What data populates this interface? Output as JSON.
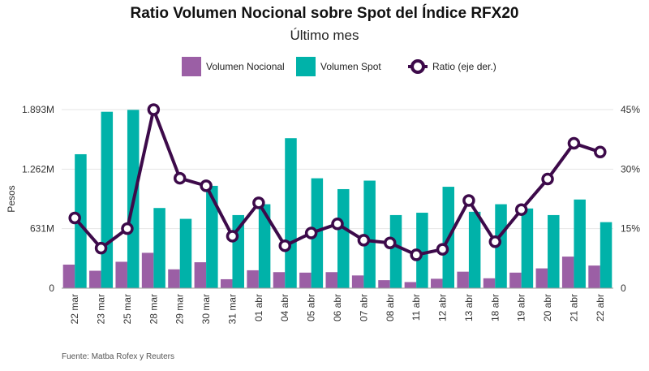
{
  "title": "Ratio Volumen Nocional sobre Spot del Índice RFX20",
  "subtitle": "Último mes",
  "source": "Fuente: Matba Rofex y Reuters",
  "legend": {
    "nocional": "Volumen Nocional",
    "spot": "Volumen Spot",
    "ratio": "Ratio (eje der.)"
  },
  "colors": {
    "nocional": "#9b5fa5",
    "spot": "#00b2a9",
    "ratio": "#3d0a4a",
    "grid": "#e6e6e6",
    "axis": "#9a9a9a"
  },
  "chart_data": {
    "type": "bar",
    "categories": [
      "22 mar",
      "23 mar",
      "25 mar",
      "28 mar",
      "29 mar",
      "30 mar",
      "31 mar",
      "01 abr",
      "04 abr",
      "05 abr",
      "06 abr",
      "07 abr",
      "08 abr",
      "11 abr",
      "12 abr",
      "13 abr",
      "18 abr",
      "19 abr",
      "20 abr",
      "21 abr",
      "22 abr"
    ],
    "series": [
      {
        "name": "Volumen Nocional",
        "axis": "left",
        "type": "bar",
        "values": [
          250,
          185,
          280,
          375,
          200,
          275,
          95,
          190,
          170,
          165,
          170,
          135,
          85,
          65,
          100,
          175,
          105,
          165,
          210,
          335,
          240
        ]
      },
      {
        "name": "Volumen Spot",
        "axis": "left",
        "type": "bar",
        "values": [
          1420,
          1870,
          1890,
          850,
          735,
          1085,
          775,
          890,
          1590,
          1165,
          1050,
          1140,
          775,
          800,
          1075,
          810,
          890,
          845,
          775,
          940,
          700
        ]
      },
      {
        "name": "Ratio (eje der.)",
        "axis": "right",
        "type": "line",
        "values": [
          17.7,
          10.1,
          15.0,
          45.0,
          27.7,
          25.8,
          13.1,
          21.5,
          10.7,
          13.9,
          16.2,
          12.1,
          11.4,
          8.4,
          9.8,
          22.1,
          11.7,
          19.8,
          27.5,
          36.5,
          34.3
        ]
      }
    ],
    "ylabel": "Pesos",
    "ylim": [
      0,
      1893
    ],
    "yticks": [
      {
        "v": 0,
        "label": "0"
      },
      {
        "v": 631,
        "label": "631M"
      },
      {
        "v": 1262,
        "label": "1.262M"
      },
      {
        "v": 1893,
        "label": "1.893M"
      }
    ],
    "y2lim": [
      0,
      45
    ],
    "y2ticks": [
      {
        "v": 0,
        "label": "0"
      },
      {
        "v": 15,
        "label": "15%"
      },
      {
        "v": 30,
        "label": "30%"
      },
      {
        "v": 45,
        "label": "45%"
      }
    ],
    "grid": true,
    "legend_position": "top"
  }
}
